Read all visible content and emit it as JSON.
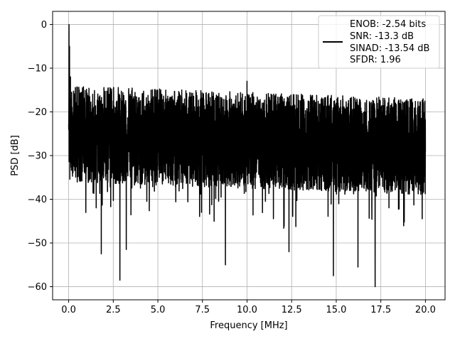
{
  "chart_data": {
    "type": "line",
    "xlabel": "Frequency [MHz]",
    "ylabel": "PSD [dB]",
    "xlim": [
      -0.9,
      21.1
    ],
    "ylim": [
      -63,
      3
    ],
    "xticks": [
      0.0,
      2.5,
      5.0,
      7.5,
      10.0,
      12.5,
      15.0,
      17.5,
      20.0
    ],
    "xtick_labels": [
      "0.0",
      "2.5",
      "5.0",
      "7.5",
      "10.0",
      "12.5",
      "15.0",
      "17.5",
      "20.0"
    ],
    "yticks": [
      0,
      -10,
      -20,
      -30,
      -40,
      -50,
      -60
    ],
    "ytick_labels": [
      "0",
      "−10",
      "−20",
      "−30",
      "−40",
      "−50",
      "−60"
    ],
    "grid": true,
    "legend_position": "top-right",
    "legend_lines": [
      "ENOB: -2.54 bits",
      "SNR: -13.3 dB",
      "SINAD: -13.54 dB",
      "SFDR: 1.96"
    ],
    "series": [
      {
        "color": "#000000",
        "x_range": [
          0.0,
          20.0
        ],
        "peak": {
          "x": 0.02,
          "y": 0
        },
        "noise_level_range": [
          -38,
          -16
        ],
        "spurs": [
          {
            "x": 0.05,
            "y": -5
          },
          {
            "x": 0.1,
            "y": -12
          },
          {
            "x": 0.15,
            "y": -17
          },
          {
            "x": 0.2,
            "y": -27
          },
          {
            "x": 1.83,
            "y": -52.5
          },
          {
            "x": 2.87,
            "y": -58.5
          },
          {
            "x": 3.23,
            "y": -51.5
          },
          {
            "x": 8.79,
            "y": -55
          },
          {
            "x": 10.0,
            "y": -13
          },
          {
            "x": 12.35,
            "y": -52
          },
          {
            "x": 14.84,
            "y": -57.5
          },
          {
            "x": 16.22,
            "y": -55.5
          },
          {
            "x": 17.18,
            "y": -60
          }
        ]
      }
    ]
  }
}
